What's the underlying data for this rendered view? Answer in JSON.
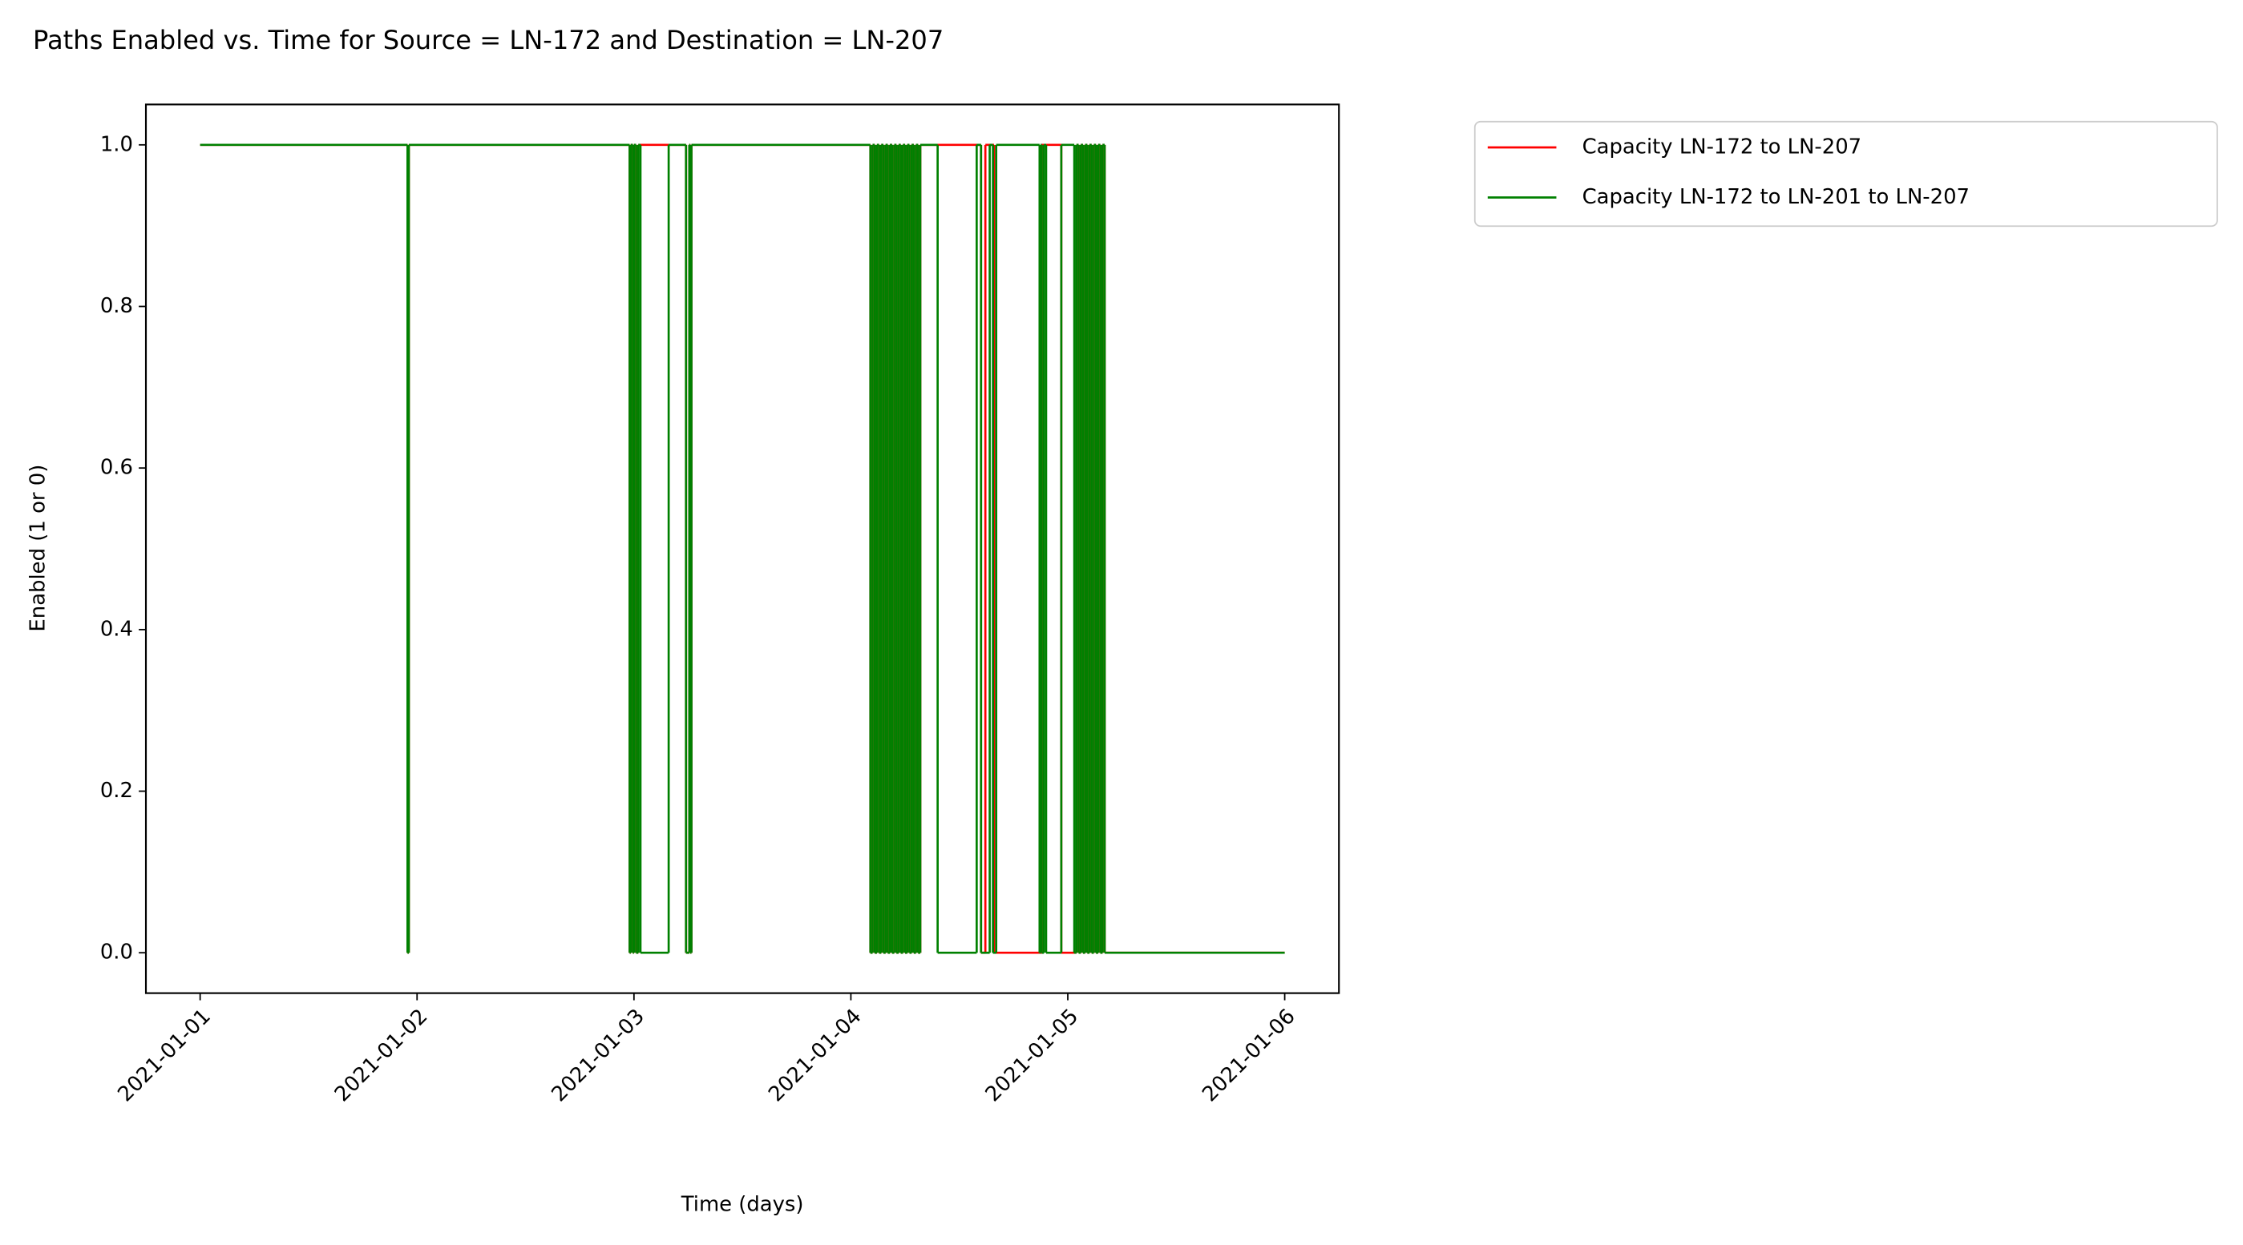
{
  "chart_data": {
    "type": "step",
    "title": "Paths Enabled vs. Time for Source = LN-172 and Destination = LN-207",
    "x_label": "Time (days)",
    "y_label": "Enabled (1 or 0)",
    "xlim": [
      -0.25,
      5.25
    ],
    "xticks": [
      {
        "value": 0,
        "label": "2021-01-01"
      },
      {
        "value": 1,
        "label": "2021-01-02"
      },
      {
        "value": 2,
        "label": "2021-01-03"
      },
      {
        "value": 3,
        "label": "2021-01-04"
      },
      {
        "value": 4,
        "label": "2021-01-05"
      },
      {
        "value": 5,
        "label": "2021-01-06"
      }
    ],
    "ylim": [
      -0.05,
      1.05
    ],
    "yticks": [
      {
        "value": 0,
        "label": "0.0"
      },
      {
        "value": 0.2,
        "label": "0.2"
      },
      {
        "value": 0.4,
        "label": "0.4"
      },
      {
        "value": 0.6,
        "label": "0.6"
      },
      {
        "value": 0.8,
        "label": "0.8"
      },
      {
        "value": 1,
        "label": "1.0"
      }
    ],
    "legend": "outside-right",
    "series": [
      {
        "name": "Capacity LN-172 to LN-207",
        "color": "#ff0000",
        "x": [
          0,
          0.956,
          0.962,
          1.98,
          1.985,
          1.995,
          2.0,
          2.01,
          2.02,
          2.24,
          2.255,
          2.26,
          2.265,
          3.09,
          3.1,
          3.11,
          3.12,
          3.13,
          3.14,
          3.15,
          3.16,
          3.17,
          3.18,
          3.19,
          3.2,
          3.21,
          3.22,
          3.23,
          3.24,
          3.25,
          3.26,
          3.27,
          3.28,
          3.29,
          3.3,
          3.31,
          3.32,
          3.6,
          3.62,
          3.66,
          3.88,
          3.97,
          4.04,
          4.05,
          4.06,
          4.07,
          4.08,
          4.09,
          4.1,
          4.11,
          4.12,
          4.13,
          4.14,
          4.15,
          4.16,
          4.17,
          5.0
        ],
        "values": [
          1,
          0,
          1,
          0,
          1,
          0,
          1,
          0,
          1,
          0,
          1,
          0,
          1,
          0,
          1,
          0,
          1,
          0,
          1,
          0,
          1,
          0,
          1,
          0,
          1,
          0,
          1,
          0,
          1,
          0,
          1,
          0,
          1,
          0,
          1,
          0,
          1,
          0,
          1,
          0,
          1,
          0,
          1,
          0,
          1,
          0,
          1,
          0,
          1,
          0,
          1,
          0,
          1,
          0,
          1,
          0,
          0
        ]
      },
      {
        "name": "Capacity LN-172 to LN-201 to LN-207",
        "color": "#008000",
        "x": [
          0,
          0.956,
          0.962,
          1.98,
          1.985,
          1.995,
          2.0,
          2.01,
          2.02,
          2.03,
          2.16,
          2.24,
          2.255,
          2.26,
          2.265,
          3.09,
          3.1,
          3.11,
          3.12,
          3.13,
          3.14,
          3.15,
          3.16,
          3.17,
          3.18,
          3.19,
          3.2,
          3.21,
          3.22,
          3.23,
          3.24,
          3.25,
          3.26,
          3.27,
          3.28,
          3.29,
          3.3,
          3.31,
          3.32,
          3.4,
          3.58,
          3.6,
          3.64,
          3.655,
          3.67,
          3.87,
          3.875,
          3.88,
          3.89,
          3.9,
          3.97,
          4.03,
          4.04,
          4.05,
          4.06,
          4.07,
          4.08,
          4.09,
          4.1,
          4.11,
          4.12,
          4.13,
          4.14,
          4.15,
          4.16,
          4.17,
          5.0
        ],
        "values": [
          1,
          0,
          1,
          0,
          1,
          0,
          1,
          0,
          1,
          0,
          1,
          0,
          1,
          0,
          1,
          0,
          1,
          0,
          1,
          0,
          1,
          0,
          1,
          0,
          1,
          0,
          1,
          0,
          1,
          0,
          1,
          0,
          1,
          0,
          1,
          0,
          1,
          0,
          1,
          0,
          1,
          0,
          1,
          0,
          1,
          0,
          1,
          0,
          1,
          0,
          1,
          0,
          1,
          0,
          1,
          0,
          1,
          0,
          1,
          0,
          1,
          0,
          1,
          0,
          1,
          0,
          0
        ]
      }
    ]
  }
}
